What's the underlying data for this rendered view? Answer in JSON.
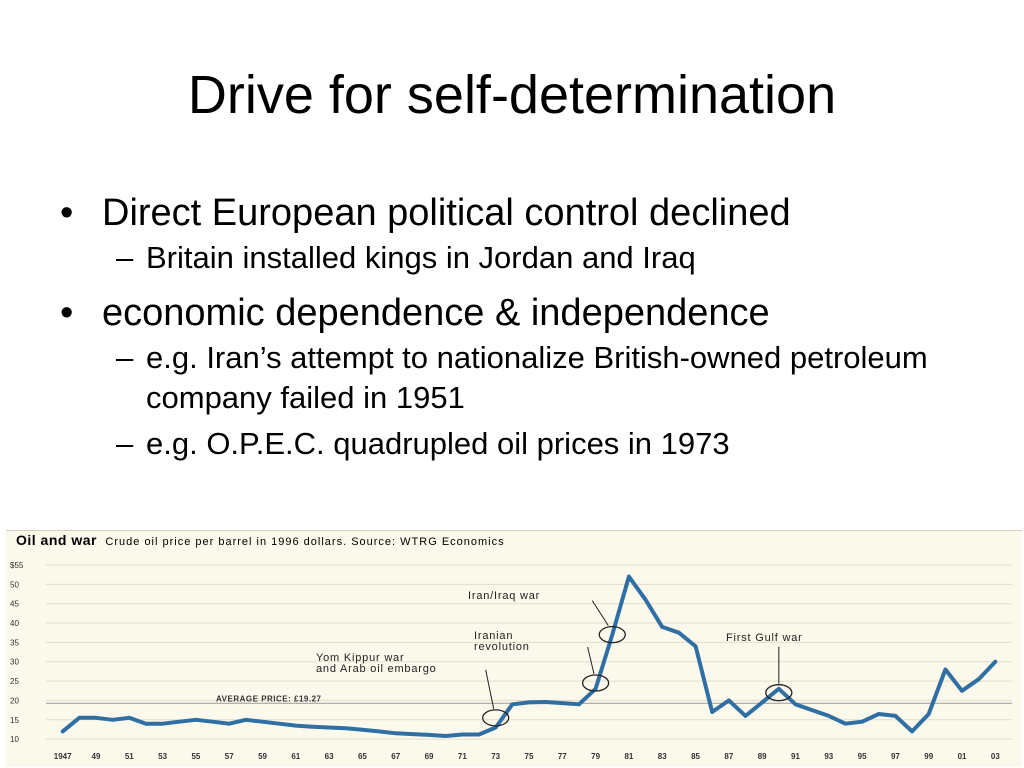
{
  "slide": {
    "title": "Drive for self-determination",
    "bullets": [
      {
        "text": "Direct European political control declined",
        "sub": [
          "Britain installed kings in Jordan and Iraq"
        ]
      },
      {
        "text": "economic dependence & independence",
        "sub": [
          "e.g. Iran’s attempt to nationalize British-owned petroleum company failed in 1951",
          "e.g. O.P.E.C. quadrupled oil prices in 1973"
        ]
      }
    ]
  },
  "chart_data": {
    "type": "line",
    "title": "Oil and war",
    "subtitle": "Crude oil price per barrel in 1996 dollars. Source: WTRG Economics",
    "xlim": [
      1946,
      2004
    ],
    "ylim": [
      9,
      55
    ],
    "x_ticks": [
      "1947",
      "49",
      "51",
      "53",
      "55",
      "57",
      "59",
      "61",
      "63",
      "65",
      "67",
      "69",
      "71",
      "73",
      "75",
      "77",
      "79",
      "81",
      "83",
      "85",
      "87",
      "89",
      "91",
      "93",
      "95",
      "97",
      "99",
      "01",
      "03"
    ],
    "x_tick_years": [
      1947,
      1949,
      1951,
      1953,
      1955,
      1957,
      1959,
      1961,
      1963,
      1965,
      1967,
      1969,
      1971,
      1973,
      1975,
      1977,
      1979,
      1981,
      1983,
      1985,
      1987,
      1989,
      1991,
      1993,
      1995,
      1997,
      1999,
      2001,
      2003
    ],
    "y_ticks": [
      {
        "value": 55,
        "label": "$55"
      },
      {
        "value": 50,
        "label": "50"
      },
      {
        "value": 45,
        "label": "45"
      },
      {
        "value": 40,
        "label": "40"
      },
      {
        "value": 35,
        "label": "35"
      },
      {
        "value": 30,
        "label": "30"
      },
      {
        "value": 25,
        "label": "25"
      },
      {
        "value": 20,
        "label": "20"
      },
      {
        "value": 15,
        "label": "15"
      },
      {
        "value": 10,
        "label": "10"
      }
    ],
    "grid": true,
    "line_color": "#2f6fa3",
    "average": {
      "label": "AVERAGE PRICE: £19.27",
      "value": 19.27
    },
    "series": [
      {
        "x": [
          1947,
          1948,
          1949,
          1950,
          1951,
          1952,
          1953,
          1954,
          1955,
          1956,
          1957,
          1958,
          1959,
          1960,
          1961,
          1962,
          1963,
          1964,
          1965,
          1966,
          1967,
          1968,
          1969,
          1970,
          1971,
          1972,
          1973,
          1974,
          1975,
          1976,
          1977,
          1978,
          1979,
          1980,
          1981,
          1982,
          1983,
          1984,
          1985,
          1986,
          1987,
          1988,
          1989,
          1990,
          1991,
          1992,
          1993,
          1994,
          1995,
          1996,
          1997,
          1998,
          1999,
          2000,
          2001,
          2002,
          2003
        ],
        "y": [
          12,
          15.5,
          15.5,
          15,
          15.5,
          14,
          14,
          14.5,
          15,
          14.5,
          14,
          15,
          14.5,
          14,
          13.5,
          13.2,
          13,
          12.8,
          12.4,
          12,
          11.5,
          11.3,
          11.1,
          10.8,
          11.2,
          11.2,
          13,
          19,
          19.5,
          19.6,
          19.3,
          19,
          23,
          37,
          52,
          46,
          39,
          37.5,
          34,
          17,
          20,
          16,
          19.5,
          23,
          19,
          17.5,
          16,
          14,
          14.5,
          16.5,
          16,
          12,
          16.5,
          28,
          22.5,
          25.5,
          30
        ]
      }
    ],
    "annotations": [
      {
        "label": "Yom Kippur war\nand Arab oil embargo",
        "x": 1973,
        "y": 15.5
      },
      {
        "label": "Iranian\nrevolution",
        "x": 1979,
        "y": 24.5
      },
      {
        "label": "Iran/Iraq war",
        "x": 1980,
        "y": 37
      },
      {
        "label": "First Gulf war",
        "x": 1990,
        "y": 22
      }
    ]
  }
}
